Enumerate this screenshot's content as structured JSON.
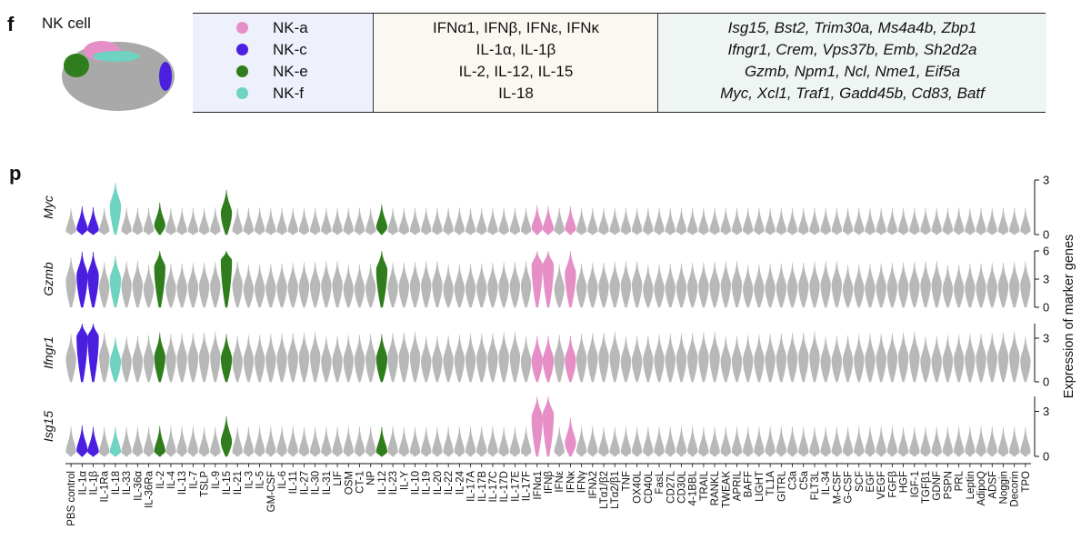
{
  "panel_f": {
    "letter": "f",
    "umap_title": "NK cell",
    "rows": [
      {
        "subtype": "NK-a",
        "color": "#e58fc6",
        "cytokines": "IFNα1, IFNβ, IFNε, IFNκ",
        "markers": "Isg15, Bst2, Trim30a, Ms4a4b, Zbp1"
      },
      {
        "subtype": "NK-c",
        "color": "#4a1fe0",
        "cytokines": "IL-1α, IL-1β",
        "markers": "Ifngr1, Crem, Vps37b, Emb, Sh2d2a"
      },
      {
        "subtype": "NK-e",
        "color": "#2f7d1c",
        "cytokines": "IL-2, IL-12, IL-15",
        "markers": "Gzmb, Npm1, Ncl, Nme1, Eif5a"
      },
      {
        "subtype": "NK-f",
        "color": "#6fd3c1",
        "cytokines": "IL-18",
        "markers": "Myc, Xcl1, Traf1, Gadd45b, Cd83, Batf"
      }
    ]
  },
  "panel_p": {
    "letter": "p"
  },
  "chart_data": {
    "type": "violin",
    "ylabel": "Expression of marker genes",
    "default_color": "#b8b8b8",
    "categories": [
      "PBS control",
      "IL-1α",
      "IL-1β",
      "IL-1Ra",
      "IL-18",
      "IL-33",
      "IL-36α",
      "IL-36Ra",
      "IL-2",
      "IL-4",
      "IL-13",
      "IL-7",
      "TSLP",
      "IL-9",
      "IL-15",
      "IL-21",
      "IL-3",
      "IL-5",
      "GM-CSF",
      "IL-6",
      "IL-11",
      "IL-27",
      "IL-30",
      "IL-31",
      "LIF",
      "OSM",
      "CT-1",
      "NP",
      "IL-12",
      "IL-23",
      "IL-Y",
      "IL-10",
      "IL-19",
      "IL-20",
      "IL-22",
      "IL-24",
      "IL-17A",
      "IL-17B",
      "IL-17C",
      "IL-17D",
      "IL-17E",
      "IL-17F",
      "IFNα1",
      "IFNβ",
      "IFNε",
      "IFNκ",
      "IFNγ",
      "IFNλ2",
      "LTα1/β2",
      "LTα2/β1",
      "TNF",
      "OX40L",
      "CD40L",
      "FasL",
      "CD27L",
      "CD30L",
      "4-1BBL",
      "TRAIL",
      "RANKL",
      "TWEAK",
      "APRIL",
      "BAFF",
      "LIGHT",
      "TL1A",
      "GITRL",
      "C3a",
      "C5a",
      "FLT3L",
      "IL-34",
      "M-CSF",
      "G-CSF",
      "SCF",
      "EGF",
      "VEGF",
      "FGFβ",
      "HGF",
      "IGF-1",
      "TGFβ1",
      "GDNF",
      "PSPN",
      "PRL",
      "Leptin",
      "AdipoQ",
      "ADSF",
      "Noggin",
      "Decorin",
      "TPO"
    ],
    "highlight_colors": {
      "IL-1α": "#4a1fe0",
      "IL-1β": "#4a1fe0",
      "IL-18": "#6fd3c1",
      "IL-2": "#2f7d1c",
      "IL-15": "#2f7d1c",
      "IL-12": "#2f7d1c",
      "IFNα1": "#e58fc6",
      "IFNβ": "#e58fc6",
      "IFNκ": "#e58fc6"
    },
    "genes": [
      {
        "name": "Myc",
        "ylim": [
          0,
          3
        ],
        "yticks": [
          0,
          3
        ],
        "baseline": 0.2,
        "overrides": {
          "IL-1α": 0.3,
          "IL-1β": 0.25,
          "IL-18": 1.6,
          "IL-2": 0.5,
          "IL-15": 1.2,
          "IL-12": 0.4,
          "IFNα1": 0.35,
          "IFNβ": 0.3,
          "IFNκ": 0.3
        }
      },
      {
        "name": "Gzmb",
        "ylim": [
          0,
          6
        ],
        "yticks": [
          0,
          3,
          6
        ],
        "baseline": 2.2,
        "overrides": {
          "PBS control": 2.8,
          "IL-1α": 3.4,
          "IL-1β": 3.4,
          "IL-18": 3.0,
          "IL-2": 4.3,
          "IL-15": 5.0,
          "IL-12": 4.0,
          "IFNα1": 4.5,
          "IFNβ": 4.5,
          "IFNκ": 3.6
        }
      },
      {
        "name": "Ifngr1",
        "ylim": [
          0,
          4
        ],
        "yticks": [
          0,
          3
        ],
        "baseline": 1.6,
        "overrides": {
          "IL-1α": 3.1,
          "IL-1β": 3.1,
          "IL-18": 1.4,
          "IL-2": 1.7,
          "IL-15": 1.6,
          "IL-12": 1.6,
          "IFNα1": 1.5,
          "IFNβ": 1.5,
          "IFNκ": 1.5
        }
      },
      {
        "name": "Isg15",
        "ylim": [
          0,
          4
        ],
        "yticks": [
          0,
          3
        ],
        "baseline": 0.3,
        "overrides": {
          "IL-1α": 0.4,
          "IL-1β": 0.3,
          "IL-18": 0.3,
          "IL-2": 0.35,
          "IL-15": 1.0,
          "IL-12": 0.3,
          "IFNα1": 2.6,
          "IFNβ": 2.8,
          "IFNκ": 0.9
        }
      }
    ]
  }
}
